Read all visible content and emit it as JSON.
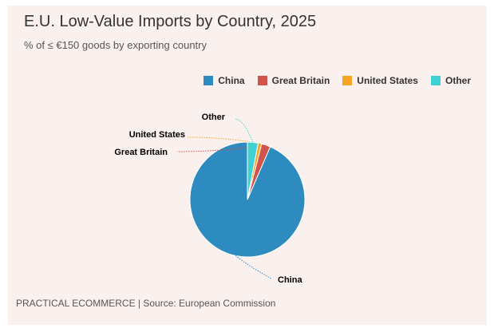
{
  "header": {
    "title": "E.U. Low-Value Imports by Country, 2025",
    "subtitle": "% of ≤ €150 goods by exporting country"
  },
  "footer": {
    "source": "PRACTICAL ECOMMERCE | Source: European Commission"
  },
  "chart_data": {
    "type": "pie",
    "title": "E.U. Low-Value Imports by Country, 2025",
    "subtitle": "% of ≤ €150 goods by exporting country",
    "categories": [
      "China",
      "Great Britain",
      "United States",
      "Other"
    ],
    "values": [
      93.5,
      2.5,
      1.0,
      3.0
    ],
    "colors": [
      "#2e8bc0",
      "#d0544a",
      "#f5a623",
      "#3dd1d1"
    ],
    "legend_position": "top-right"
  }
}
